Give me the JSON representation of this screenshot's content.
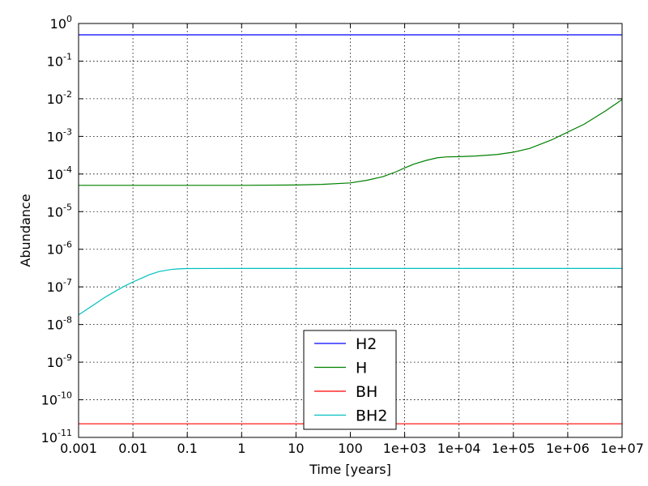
{
  "chart_data": {
    "type": "line",
    "title": "",
    "xlabel": "Time [years]",
    "ylabel": "Abundance",
    "xscale": "log",
    "yscale": "log",
    "xlim": [
      0.001,
      10000000
    ],
    "ylim": [
      1e-11,
      1
    ],
    "grid": true,
    "legend_position": "lower-center",
    "x_ticks": [
      {
        "value": 0.001,
        "label": "0.001"
      },
      {
        "value": 0.01,
        "label": "0.01"
      },
      {
        "value": 0.1,
        "label": "0.1"
      },
      {
        "value": 1,
        "label": "1"
      },
      {
        "value": 10,
        "label": "10"
      },
      {
        "value": 100,
        "label": "100"
      },
      {
        "value": 1000,
        "label": "1e+03"
      },
      {
        "value": 10000,
        "label": "1e+04"
      },
      {
        "value": 100000,
        "label": "1e+05"
      },
      {
        "value": 1000000,
        "label": "1e+06"
      },
      {
        "value": 10000000,
        "label": "1e+07"
      }
    ],
    "y_ticks": [
      {
        "value": 1,
        "base": "10",
        "exp": "0"
      },
      {
        "value": 0.1,
        "base": "10",
        "exp": "-1"
      },
      {
        "value": 0.01,
        "base": "10",
        "exp": "-2"
      },
      {
        "value": 0.001,
        "base": "10",
        "exp": "-3"
      },
      {
        "value": 0.0001,
        "base": "10",
        "exp": "-4"
      },
      {
        "value": 1e-05,
        "base": "10",
        "exp": "-5"
      },
      {
        "value": 1e-06,
        "base": "10",
        "exp": "-6"
      },
      {
        "value": 1e-07,
        "base": "10",
        "exp": "-7"
      },
      {
        "value": 1e-08,
        "base": "10",
        "exp": "-8"
      },
      {
        "value": 1e-09,
        "base": "10",
        "exp": "-9"
      },
      {
        "value": 1e-10,
        "base": "10",
        "exp": "-10"
      },
      {
        "value": 1e-11,
        "base": "10",
        "exp": "-11"
      }
    ],
    "series": [
      {
        "name": "H2",
        "color": "#0000ff",
        "points": [
          [
            0.001,
            0.5
          ],
          [
            10000000,
            0.5
          ]
        ]
      },
      {
        "name": "H",
        "color": "#008000",
        "points": [
          [
            0.001,
            5e-05
          ],
          [
            1,
            5e-05
          ],
          [
            10,
            5.1e-05
          ],
          [
            30,
            5.3e-05
          ],
          [
            100,
            5.8e-05
          ],
          [
            200,
            6.8e-05
          ],
          [
            400,
            8.5e-05
          ],
          [
            700,
            0.000115
          ],
          [
            1000,
            0.000145
          ],
          [
            1500,
            0.000185
          ],
          [
            2500,
            0.00023
          ],
          [
            4000,
            0.00027
          ],
          [
            6000,
            0.000285
          ],
          [
            10000,
            0.00029
          ],
          [
            20000,
            0.0003
          ],
          [
            50000,
            0.00033
          ],
          [
            100000,
            0.00038
          ],
          [
            200000,
            0.00048
          ],
          [
            500000,
            0.0008
          ],
          [
            1000000,
            0.0013
          ],
          [
            2000000,
            0.0021
          ],
          [
            5000000,
            0.0048
          ],
          [
            10000000,
            0.0095
          ]
        ]
      },
      {
        "name": "BH",
        "color": "#ff0000",
        "points": [
          [
            0.001,
            2.3e-11
          ],
          [
            10000000,
            2.3e-11
          ]
        ]
      },
      {
        "name": "BH2",
        "color": "#00bfbf",
        "points": [
          [
            0.001,
            1.8e-08
          ],
          [
            0.002,
            3.5e-08
          ],
          [
            0.003,
            5.2e-08
          ],
          [
            0.005,
            8e-08
          ],
          [
            0.007,
            1.05e-07
          ],
          [
            0.01,
            1.35e-07
          ],
          [
            0.015,
            1.75e-07
          ],
          [
            0.02,
            2.1e-07
          ],
          [
            0.03,
            2.55e-07
          ],
          [
            0.05,
            2.9e-07
          ],
          [
            0.07,
            3.02e-07
          ],
          [
            0.1,
            3.08e-07
          ],
          [
            1,
            3.1e-07
          ],
          [
            10000000,
            3.1e-07
          ]
        ]
      }
    ]
  }
}
